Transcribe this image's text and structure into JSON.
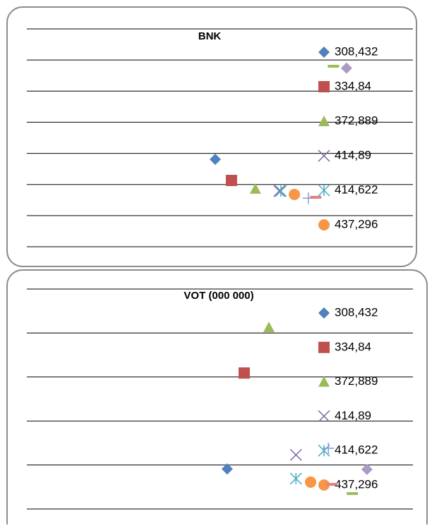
{
  "chart_data": [
    {
      "type": "scatter",
      "title": "BNK",
      "xlim": [
        0,
        10
      ],
      "ylim": [
        0,
        7
      ],
      "yticks": [
        0,
        1,
        2,
        3,
        4,
        5,
        6,
        7
      ],
      "grid": true,
      "series": [
        {
          "name": "308,432",
          "marker": "diamond",
          "color": "#4f81bd",
          "x": [
            4.88
          ],
          "values": [
            2.81
          ]
        },
        {
          "name": "334,84",
          "marker": "square",
          "color": "#c0504d",
          "x": [
            5.3
          ],
          "values": [
            2.13
          ]
        },
        {
          "name": "372,889",
          "marker": "triangle",
          "color": "#9bbb59",
          "x": [
            5.92
          ],
          "values": [
            1.86
          ]
        },
        {
          "name": "414,89",
          "marker": "x",
          "color": "#8064a2",
          "x": [
            6.54
          ],
          "values": [
            1.79
          ]
        },
        {
          "name": "414,622",
          "marker": "asterisk",
          "color": "#4bacc6",
          "x": [
            6.58
          ],
          "values": [
            1.79
          ]
        },
        {
          "name": "437,296",
          "marker": "circle",
          "color": "#f79646",
          "x": [
            6.93
          ],
          "values": [
            1.68
          ]
        },
        {
          "marker": "plus",
          "color": "#7f9fd0",
          "x": [
            7.29
          ],
          "values": [
            1.56
          ]
        },
        {
          "marker": "dash",
          "color": "#e08080",
          "x": [
            7.48
          ],
          "values": [
            1.59
          ]
        },
        {
          "marker": "dash",
          "color": "#9bbb59",
          "x": [
            7.94
          ],
          "values": [
            5.8
          ]
        },
        {
          "marker": "diamond",
          "color": "#a99bc6",
          "x": [
            8.28
          ],
          "values": [
            5.74
          ]
        }
      ]
    },
    {
      "type": "scatter",
      "title": "VOT (000 000)",
      "xlim": [
        0,
        10
      ],
      "ylim": [
        0,
        5
      ],
      "yticks": [
        0,
        1,
        2,
        3,
        4,
        5
      ],
      "grid": true,
      "series": [
        {
          "name": "308,432",
          "marker": "diamond",
          "color": "#4f81bd",
          "x": [
            5.19
          ],
          "values": [
            0.91
          ]
        },
        {
          "name": "334,84",
          "marker": "square",
          "color": "#c0504d",
          "x": [
            5.63
          ],
          "values": [
            3.09
          ]
        },
        {
          "name": "372,889",
          "marker": "triangle",
          "color": "#9bbb59",
          "x": [
            6.27
          ],
          "values": [
            4.13
          ]
        },
        {
          "name": "414,89",
          "marker": "x",
          "color": "#8064a2",
          "x": [
            6.97
          ],
          "values": [
            1.23
          ]
        },
        {
          "name": "414,622",
          "marker": "asterisk",
          "color": "#4bacc6",
          "x": [
            6.97
          ],
          "values": [
            0.69
          ]
        },
        {
          "name": "437,296",
          "marker": "circle",
          "color": "#f79646",
          "x": [
            7.35
          ],
          "values": [
            0.61
          ]
        },
        {
          "marker": "plus",
          "color": "#7f9fd0",
          "x": [
            7.81
          ],
          "values": [
            1.38
          ]
        },
        {
          "marker": "dash",
          "color": "#e08080",
          "x": [
            7.9
          ],
          "values": [
            0.56
          ]
        },
        {
          "marker": "dash",
          "color": "#9bbb59",
          "x": [
            8.43
          ],
          "values": [
            0.35
          ]
        },
        {
          "marker": "diamond",
          "color": "#a99bc6",
          "x": [
            8.81
          ],
          "values": [
            0.9
          ]
        }
      ]
    }
  ]
}
